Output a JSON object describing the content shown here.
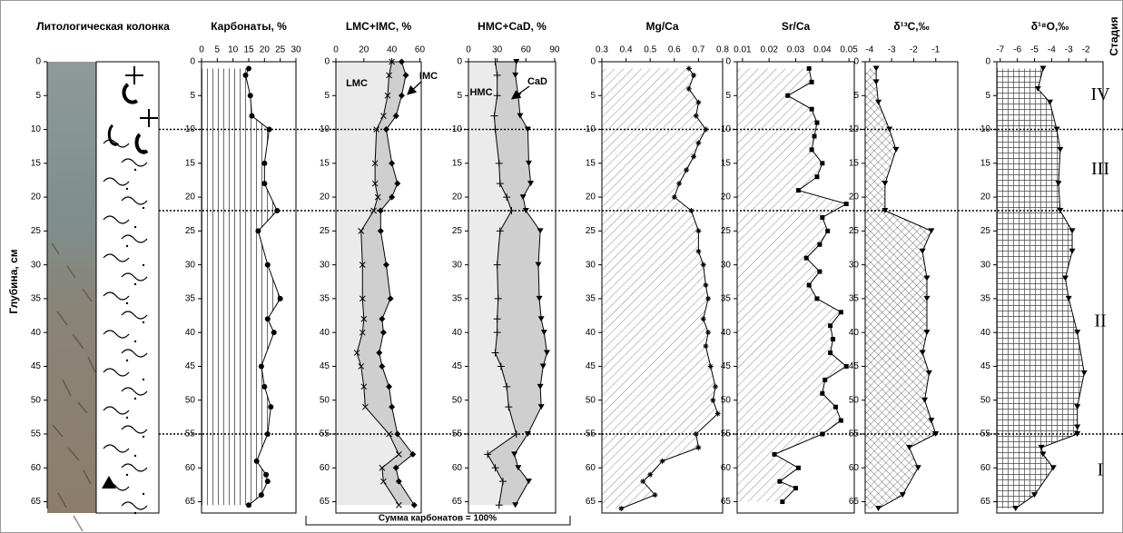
{
  "chart_data": [
    {
      "type": "lithology",
      "title": "Литологическая колонка"
    },
    {
      "type": "profile",
      "title": "Карбонаты, %",
      "xlim": [
        0,
        30
      ],
      "xticks": [
        0,
        5,
        10,
        15,
        20,
        25,
        30
      ],
      "depths": [
        1,
        2,
        5,
        8,
        10,
        15,
        18,
        22,
        25,
        30,
        35,
        38,
        40,
        45,
        48,
        51,
        55,
        59,
        61,
        62,
        64,
        65.5
      ],
      "series": [
        {
          "color": "#000000",
          "marker": "circle",
          "fill": "vlines",
          "values": [
            15,
            14,
            15.5,
            16,
            21.5,
            20,
            20,
            24,
            18,
            21,
            25,
            21,
            23,
            19,
            20,
            22,
            21,
            17.5,
            20.5,
            21,
            19,
            15
          ]
        }
      ]
    },
    {
      "type": "profile",
      "title": "LMC+IMC, %",
      "xlim": [
        0,
        61
      ],
      "xticks": [
        0,
        20,
        40,
        60
      ],
      "depths": [
        0,
        2,
        5,
        8,
        10,
        15,
        18,
        20,
        22,
        25,
        30,
        35,
        38,
        40,
        43,
        45,
        48,
        51,
        55,
        58,
        60,
        62,
        65.5
      ],
      "series": [
        {
          "name": "LMC",
          "color": "#000000",
          "marker": "x",
          "fill": "light",
          "values": [
            40,
            38,
            37,
            34,
            29,
            28,
            28,
            30,
            27,
            18,
            19,
            19,
            20,
            19,
            15,
            18,
            20,
            21,
            38,
            45,
            33,
            34,
            45
          ]
        },
        {
          "name": "IMC",
          "color": "#000000",
          "marker": "diamond",
          "fill": "dark",
          "values": [
            47,
            50,
            47,
            43,
            36,
            40,
            44,
            40,
            32,
            32,
            36,
            39,
            33,
            34,
            31,
            33,
            38,
            40,
            44,
            55,
            43,
            45,
            56
          ]
        }
      ]
    },
    {
      "type": "profile",
      "title": "HMC+CaD, %",
      "xlim": [
        0,
        91
      ],
      "xticks": [
        0,
        30,
        60,
        90
      ],
      "depths": [
        0,
        2,
        5,
        8,
        10,
        15,
        18,
        20,
        22,
        25,
        30,
        35,
        38,
        40,
        43,
        45,
        48,
        51,
        55,
        58,
        60,
        62,
        65.5
      ],
      "series": [
        {
          "name": "HMC",
          "color": "#000000",
          "marker": "plus",
          "fill": "light",
          "values": [
            28,
            30,
            30,
            27,
            28,
            32,
            33,
            40,
            45,
            33,
            30,
            31,
            30,
            30,
            28,
            34,
            40,
            42,
            50,
            20,
            28,
            36,
            32
          ]
        },
        {
          "name": "CaD",
          "color": "#000000",
          "marker": "triangle",
          "fill": "dark",
          "values": [
            50,
            49,
            52,
            54,
            62,
            63,
            65,
            57,
            60,
            75,
            73,
            74,
            76,
            79,
            82,
            78,
            75,
            76,
            62,
            48,
            52,
            63,
            49
          ]
        }
      ]
    },
    {
      "type": "profile",
      "title": "Mg/Ca",
      "xlim": [
        0.3,
        0.8
      ],
      "xticks": [
        0.3,
        0.4,
        0.5,
        0.6,
        0.7,
        0.8
      ],
      "depths": [
        1,
        2,
        4,
        6,
        8,
        10,
        12,
        14,
        16,
        18,
        20,
        22,
        25,
        28,
        30,
        33,
        35,
        38,
        40,
        42,
        45,
        48,
        50,
        52,
        55,
        57,
        59,
        61,
        62,
        64,
        66
      ],
      "series": [
        {
          "color": "#000000",
          "marker": "star",
          "fill": "diag",
          "values": [
            0.66,
            0.68,
            0.66,
            0.7,
            0.69,
            0.73,
            0.7,
            0.68,
            0.65,
            0.62,
            0.6,
            0.67,
            0.7,
            0.7,
            0.72,
            0.73,
            0.74,
            0.72,
            0.74,
            0.73,
            0.75,
            0.77,
            0.76,
            0.78,
            0.69,
            0.7,
            0.55,
            0.5,
            0.47,
            0.52,
            0.38
          ]
        }
      ]
    },
    {
      "type": "profile",
      "title": "Sr/Ca",
      "xlim": [
        0.008,
        0.052
      ],
      "xticks": [
        0.01,
        0.02,
        0.03,
        0.04,
        0.05
      ],
      "depths": [
        1,
        3,
        5,
        7,
        9,
        11,
        13,
        15,
        17,
        19,
        21,
        23,
        25,
        27,
        29,
        31,
        33,
        35,
        37,
        39,
        41,
        43,
        45,
        47,
        49,
        51,
        53,
        55,
        58,
        60,
        62,
        63,
        65
      ],
      "series": [
        {
          "color": "#000000",
          "marker": "square",
          "fill": "diag",
          "values": [
            0.035,
            0.036,
            0.027,
            0.036,
            0.038,
            0.037,
            0.036,
            0.04,
            0.038,
            0.031,
            0.049,
            0.04,
            0.042,
            0.039,
            0.034,
            0.039,
            0.035,
            0.038,
            0.047,
            0.043,
            0.044,
            0.043,
            0.049,
            0.041,
            0.04,
            0.045,
            0.047,
            0.04,
            0.022,
            0.031,
            0.024,
            0.03,
            0.025
          ]
        }
      ]
    },
    {
      "type": "profile",
      "title": "δ¹³C,‰",
      "xlim": [
        -4.2,
        0
      ],
      "xticks": [
        -4,
        -3,
        -2,
        -1
      ],
      "depths": [
        1,
        3,
        6,
        10,
        13,
        18,
        22,
        25,
        28,
        32,
        35,
        40,
        43,
        46,
        50,
        53,
        55,
        57,
        60,
        64,
        66
      ],
      "series": [
        {
          "color": "#000000",
          "marker": "triangle",
          "fill": "cross",
          "values": [
            -3.7,
            -3.7,
            -3.6,
            -3.1,
            -2.8,
            -3.3,
            -3.3,
            -1.2,
            -1.6,
            -1.4,
            -1.4,
            -1.4,
            -1.6,
            -1.3,
            -1.5,
            -1.2,
            -1.0,
            -2.2,
            -1.8,
            -2.5,
            -3.6
          ]
        }
      ]
    },
    {
      "type": "profile",
      "title": "δ¹⁸O,‰",
      "xlim": [
        -7.2,
        -1
      ],
      "xticks": [
        -7,
        -6,
        -5,
        -4,
        -3,
        -2
      ],
      "depths": [
        1,
        4,
        6,
        10,
        13,
        18,
        22,
        25,
        28,
        32,
        35,
        40,
        46,
        51,
        54,
        55,
        57,
        58,
        60,
        64,
        66
      ],
      "series": [
        {
          "color": "#000000",
          "marker": "triangle",
          "fill": "grid",
          "values": [
            -4.5,
            -4.8,
            -4.1,
            -3.7,
            -3.5,
            -3.6,
            -3.5,
            -2.8,
            -2.8,
            -3.2,
            -3.0,
            -2.5,
            -2.1,
            -2.5,
            -2.5,
            -2.5,
            -4.6,
            -4.5,
            -3.9,
            -5.0,
            -6.1
          ]
        }
      ]
    }
  ],
  "depth_axis": {
    "label": "Глубина, см",
    "ylim": [
      0,
      66
    ],
    "yticks": [
      0,
      5,
      10,
      15,
      20,
      25,
      30,
      35,
      40,
      45,
      50,
      55,
      60,
      65
    ]
  },
  "stages": {
    "title": "Стадия",
    "boundaries": [
      10,
      22,
      55
    ],
    "labels": [
      "IV",
      "III",
      "II",
      "I"
    ]
  },
  "note": "Сумма карбонатов = 100%"
}
